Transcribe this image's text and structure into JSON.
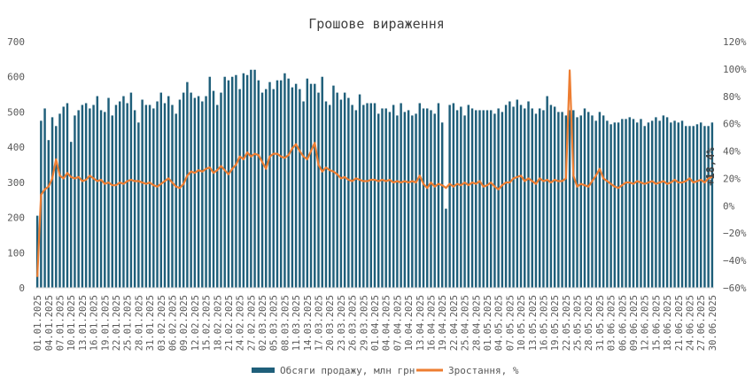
{
  "chart_data": {
    "type": "bar",
    "title": "Грошове вираження",
    "xlabel": "",
    "ylabel": "",
    "ylim": [
      0,
      700
    ],
    "y2lim": [
      -60,
      120
    ],
    "y_ticks": [
      "0",
      "100",
      "200",
      "300",
      "400",
      "500",
      "600",
      "700"
    ],
    "y2_ticks": [
      "−60%",
      "−40%",
      "−20%",
      "0%",
      "20%",
      "40%",
      "60%",
      "80%",
      "100%",
      "120%"
    ],
    "x_tick_labels": [
      "01.01.2025",
      "04.01.2025",
      "07.01.2025",
      "10.01.2025",
      "13.01.2025",
      "16.01.2025",
      "19.01.2025",
      "22.01.2025",
      "25.01.2025",
      "28.01.2025",
      "31.01.2025",
      "03.02.2025",
      "06.02.2025",
      "09.02.2025",
      "12.02.2025",
      "15.02.2025",
      "18.02.2025",
      "21.02.2025",
      "24.02.2025",
      "27.02.2025",
      "02.03.2025",
      "05.03.2025",
      "08.03.2025",
      "11.03.2025",
      "14.03.2025",
      "17.03.2025",
      "20.03.2025",
      "23.03.2025",
      "26.03.2025",
      "29.03.2025",
      "01.04.2025",
      "04.04.2025",
      "07.04.2025",
      "10.04.2025",
      "13.04.2025",
      "16.04.2025",
      "19.04.2025",
      "22.04.2025",
      "25.04.2025",
      "28.04.2025",
      "01.05.2025",
      "04.05.2025",
      "07.05.2025",
      "10.05.2025",
      "13.05.2025",
      "16.05.2025",
      "19.05.2025",
      "22.05.2025",
      "25.05.2025",
      "28.05.2025",
      "31.05.2025",
      "03.06.2025",
      "06.06.2025",
      "09.06.2025",
      "12.06.2025",
      "15.06.2025",
      "18.06.2025",
      "21.06.2025",
      "24.06.2025",
      "27.06.2025",
      "30.06.2025"
    ],
    "days": 181,
    "series": [
      {
        "name": "Обсяги продажу, млн грн",
        "type": "bar",
        "axis": "left",
        "color": "#1f5f7a",
        "values": [
          205,
          475,
          510,
          420,
          485,
          460,
          495,
          515,
          525,
          415,
          490,
          505,
          520,
          525,
          510,
          520,
          545,
          505,
          500,
          540,
          490,
          520,
          530,
          545,
          525,
          555,
          505,
          470,
          535,
          520,
          520,
          510,
          530,
          555,
          525,
          545,
          520,
          495,
          535,
          555,
          585,
          555,
          540,
          545,
          530,
          545,
          600,
          560,
          520,
          555,
          600,
          590,
          600,
          605,
          565,
          610,
          605,
          620,
          620,
          590,
          555,
          565,
          585,
          565,
          590,
          590,
          610,
          595,
          570,
          580,
          565,
          530,
          595,
          580,
          580,
          555,
          600,
          530,
          520,
          575,
          555,
          535,
          555,
          540,
          520,
          505,
          550,
          520,
          525,
          525,
          525,
          495,
          510,
          510,
          500,
          520,
          490,
          525,
          500,
          505,
          490,
          495,
          525,
          510,
          510,
          505,
          495,
          525,
          470,
          225,
          520,
          525,
          505,
          515,
          490,
          520,
          510,
          505,
          505,
          505,
          505,
          505,
          495,
          510,
          500,
          520,
          530,
          515,
          535,
          520,
          510,
          530,
          510,
          495,
          510,
          505,
          545,
          520,
          515,
          500,
          500,
          490,
          505,
          505,
          485,
          490,
          510,
          500,
          490,
          475,
          500,
          490,
          475,
          465,
          470,
          470,
          480,
          480,
          485,
          480,
          470,
          480,
          460,
          470,
          475,
          485,
          475,
          490,
          485,
          470,
          475,
          470,
          475,
          460,
          460,
          460,
          465,
          470,
          460,
          460,
          470
        ]
      },
      {
        "name": "Зростання, %",
        "type": "line",
        "axis": "right",
        "color": "#ed7d31",
        "values": [
          -52,
          8,
          12,
          14,
          20,
          34,
          22,
          20,
          24,
          21,
          20,
          21,
          18,
          19,
          22,
          20,
          18,
          19,
          16,
          17,
          15,
          15,
          17,
          16,
          18,
          19,
          18,
          18,
          17,
          16,
          17,
          15,
          14,
          16,
          18,
          20,
          17,
          14,
          13,
          16,
          22,
          25,
          24,
          26,
          25,
          27,
          28,
          24,
          26,
          29,
          26,
          23,
          27,
          30,
          36,
          34,
          39,
          36,
          38,
          37,
          32,
          27,
          36,
          38,
          38,
          36,
          35,
          37,
          42,
          45,
          40,
          36,
          34,
          40,
          46,
          30,
          25,
          28,
          26,
          25,
          23,
          20,
          21,
          19,
          18,
          20,
          19,
          18,
          18,
          19,
          19,
          18,
          19,
          18,
          19,
          17,
          18,
          17,
          18,
          17,
          18,
          17,
          22,
          16,
          13,
          17,
          14,
          16,
          15,
          13,
          16,
          14,
          16,
          15,
          17,
          15,
          17,
          16,
          18,
          14,
          15,
          17,
          14,
          12,
          15,
          17,
          17,
          20,
          21,
          22,
          18,
          20,
          18,
          16,
          20,
          18,
          19,
          17,
          19,
          18,
          18,
          20,
          99,
          22,
          14,
          16,
          15,
          14,
          18,
          22,
          27,
          20,
          18,
          16,
          14,
          13,
          15,
          17,
          17,
          16,
          18,
          17,
          16,
          17,
          18,
          16,
          17,
          18,
          16,
          17,
          19,
          17,
          17,
          18,
          20,
          17,
          18,
          19,
          17,
          20,
          21
        ]
      }
    ],
    "data_label": "+18,4%",
    "legend": {
      "position": "bottom",
      "items": [
        "Обсяги продажу, млн грн",
        "Зростання, %"
      ]
    },
    "grid": false
  }
}
